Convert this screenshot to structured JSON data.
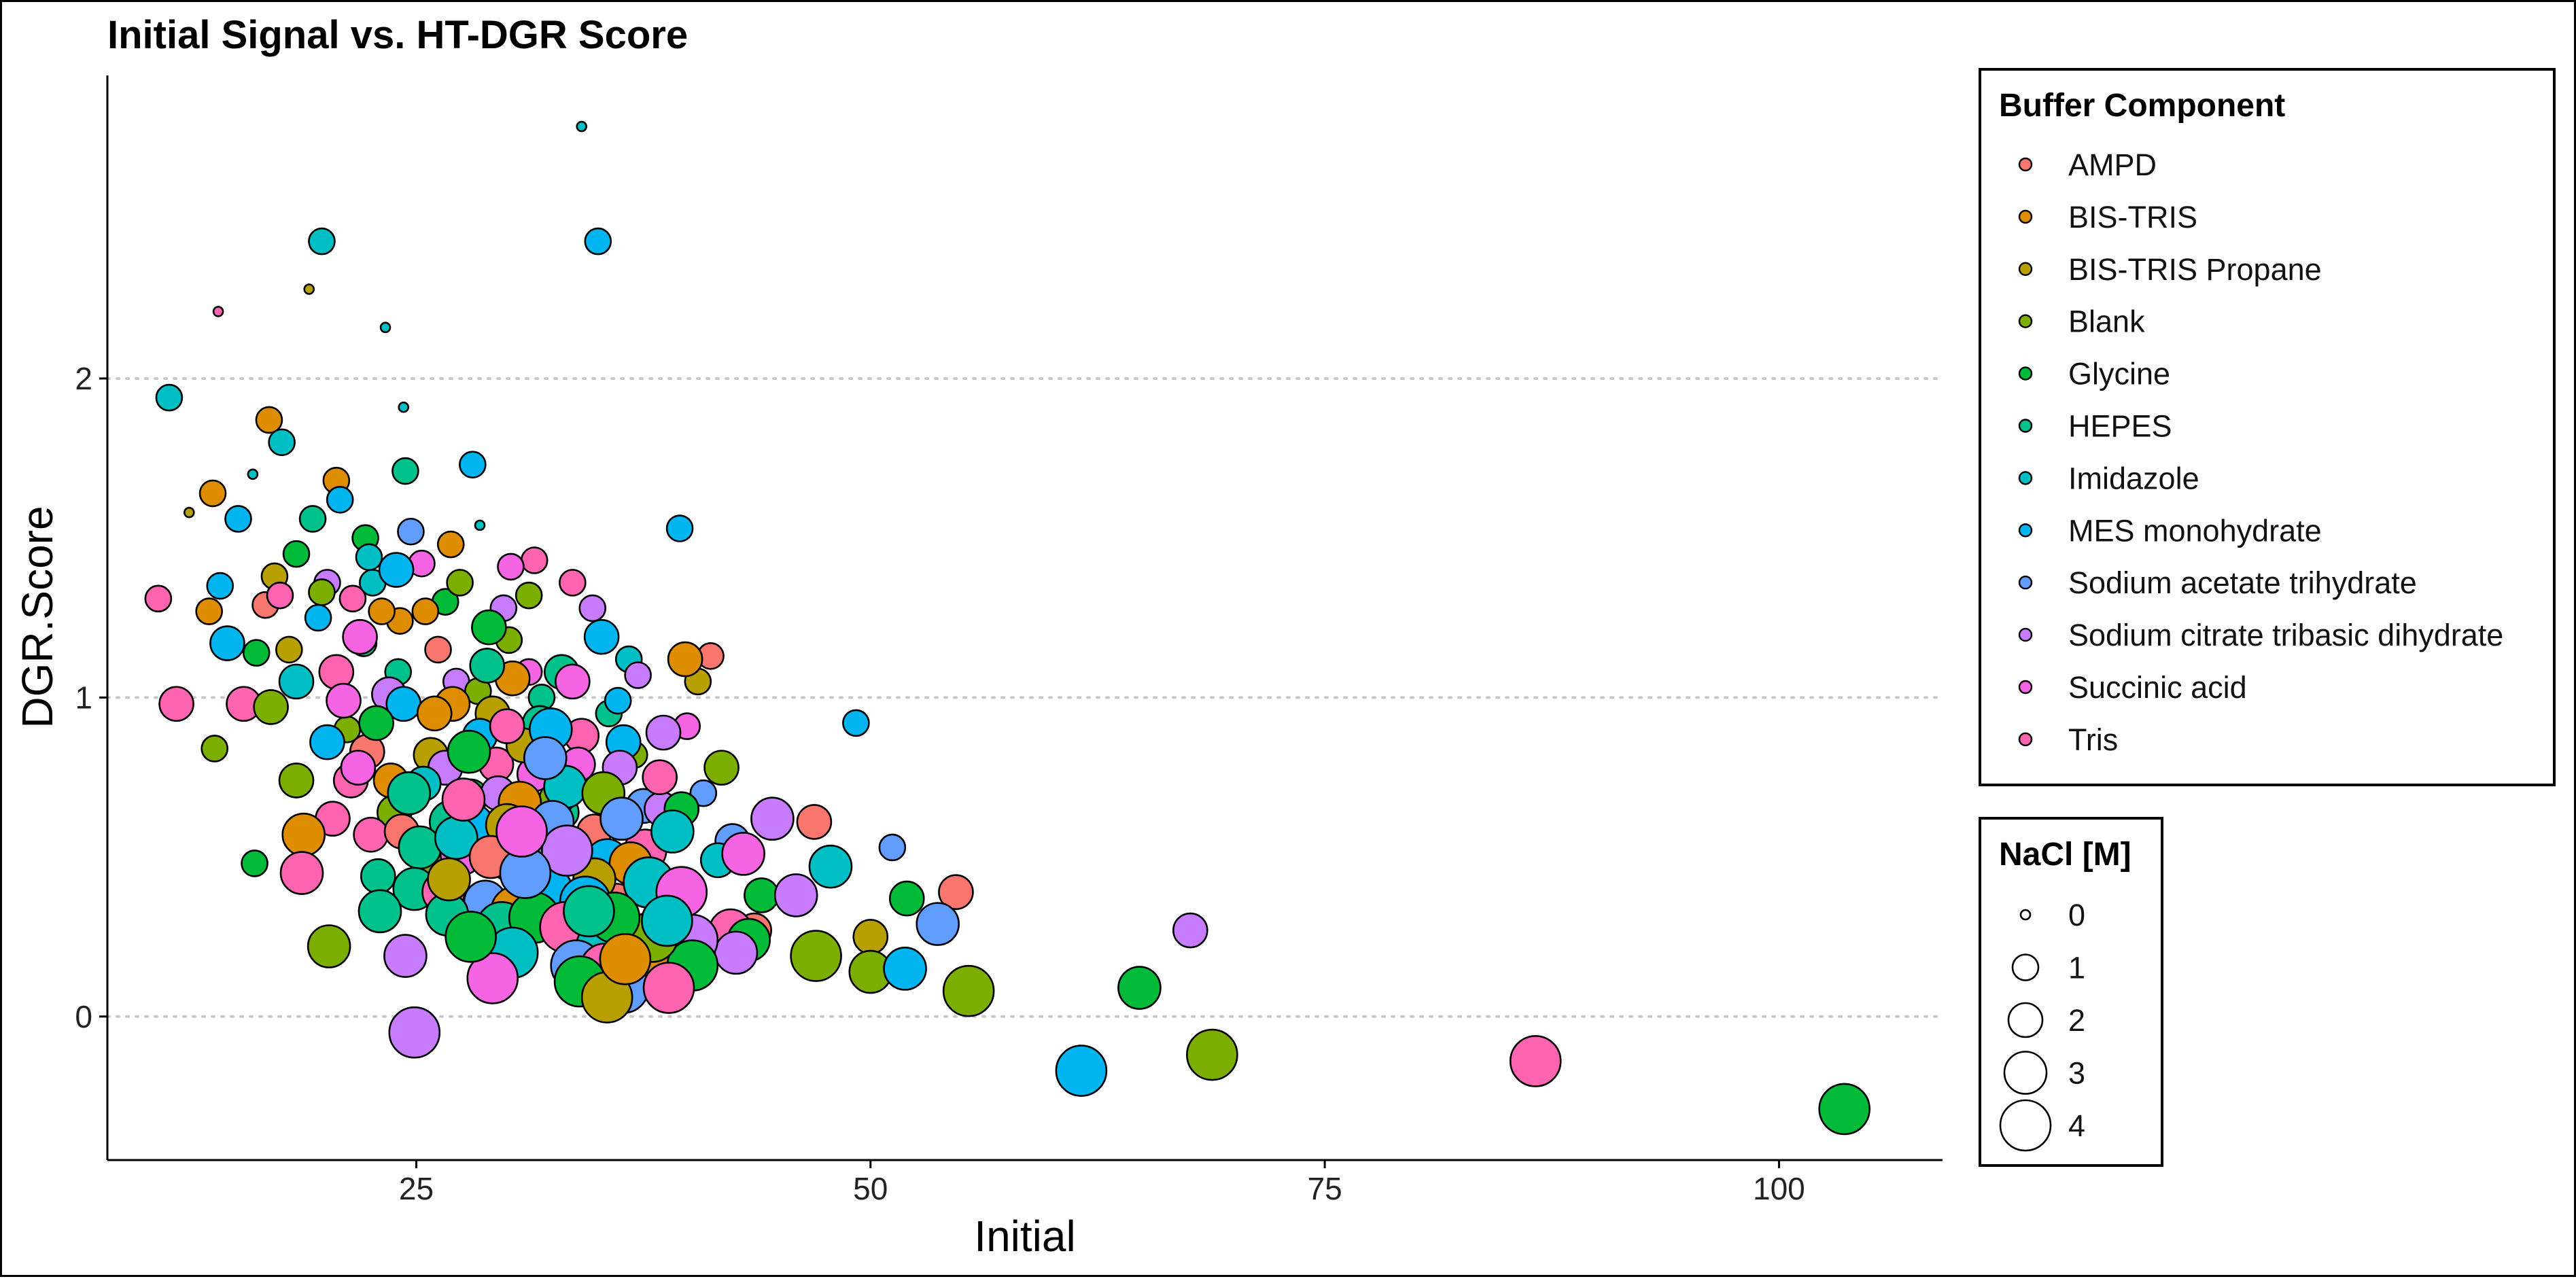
{
  "chart_data": {
    "type": "scatter",
    "title": "Initial Signal vs. HT-DGR Score",
    "xlabel": "Initial",
    "ylabel": "DGR.Score",
    "xlim": [
      8,
      109
    ],
    "ylim": [
      -0.45,
      2.95
    ],
    "xticks": [
      25,
      50,
      75,
      100
    ],
    "yticks": [
      0,
      1,
      2
    ],
    "grid": "horizontal-dotted",
    "legend_color": {
      "title": "Buffer Component",
      "placement": "right",
      "entries": [
        {
          "name": "AMPD",
          "color": "#F8766D"
        },
        {
          "name": "BIS-TRIS",
          "color": "#DE8C00"
        },
        {
          "name": "BIS-TRIS Propane",
          "color": "#B79F00"
        },
        {
          "name": "Blank",
          "color": "#7CAE00"
        },
        {
          "name": "Glycine",
          "color": "#00BA38"
        },
        {
          "name": "HEPES",
          "color": "#00C08B"
        },
        {
          "name": "Imidazole",
          "color": "#00BFC4"
        },
        {
          "name": "MES monohydrate",
          "color": "#00B4F0"
        },
        {
          "name": "Sodium acetate trihydrate",
          "color": "#619CFF"
        },
        {
          "name": "Sodium citrate tribasic dihydrate",
          "color": "#C77CFF"
        },
        {
          "name": "Succinic acid",
          "color": "#F564E3"
        },
        {
          "name": "Tris",
          "color": "#FF64B0"
        }
      ]
    },
    "legend_size": {
      "title": "NaCl [M]",
      "placement": "right",
      "entries": [
        {
          "label": "0",
          "value": 0
        },
        {
          "label": "1",
          "value": 1
        },
        {
          "label": "2",
          "value": 2
        },
        {
          "label": "3",
          "value": 3
        },
        {
          "label": "4",
          "value": 4
        }
      ]
    },
    "points": [
      [
        34.1,
        2.79,
        6,
        0
      ],
      [
        35.0,
        2.43,
        7,
        1
      ],
      [
        19.8,
        2.43,
        6,
        1
      ],
      [
        19.1,
        2.28,
        2,
        0
      ],
      [
        14.1,
        2.21,
        11,
        0
      ],
      [
        23.3,
        2.16,
        6,
        0
      ],
      [
        11.4,
        1.94,
        6,
        1
      ],
      [
        24.3,
        1.91,
        6,
        0
      ],
      [
        16.9,
        1.87,
        1,
        1
      ],
      [
        17.6,
        1.8,
        6,
        1
      ],
      [
        28.1,
        1.73,
        7,
        1
      ],
      [
        24.4,
        1.71,
        5,
        1
      ],
      [
        16.0,
        1.7,
        6,
        0
      ],
      [
        20.6,
        1.68,
        1,
        1
      ],
      [
        13.8,
        1.64,
        1,
        1
      ],
      [
        20.8,
        1.62,
        7,
        1
      ],
      [
        15.2,
        1.56,
        7,
        1
      ],
      [
        19.3,
        1.56,
        5,
        1
      ],
      [
        12.5,
        1.58,
        2,
        0
      ],
      [
        39.5,
        1.53,
        7,
        1
      ],
      [
        28.5,
        1.54,
        6,
        0
      ],
      [
        22.2,
        1.5,
        4,
        1
      ],
      [
        24.7,
        1.52,
        8,
        1
      ],
      [
        26.9,
        1.48,
        1,
        1
      ],
      [
        18.4,
        1.45,
        4,
        1
      ],
      [
        31.5,
        1.43,
        11,
        1
      ],
      [
        30.2,
        1.41,
        10,
        1
      ],
      [
        17.2,
        1.38,
        2,
        1
      ],
      [
        23.9,
        1.4,
        7,
        2
      ],
      [
        20.1,
        1.36,
        9,
        1
      ],
      [
        14.2,
        1.35,
        7,
        1
      ],
      [
        10.8,
        1.31,
        11,
        1
      ],
      [
        19.8,
        1.33,
        3,
        1
      ],
      [
        22.6,
        1.36,
        6,
        1
      ],
      [
        26.6,
        1.3,
        4,
        1
      ],
      [
        31.2,
        1.32,
        3,
        1
      ],
      [
        21.5,
        1.31,
        11,
        1
      ],
      [
        25.5,
        1.27,
        1,
        1
      ],
      [
        16.7,
        1.29,
        0,
        1
      ],
      [
        13.6,
        1.27,
        1,
        1
      ],
      [
        24.1,
        1.24,
        1,
        1
      ],
      [
        29.0,
        1.22,
        4,
        2
      ],
      [
        35.2,
        1.19,
        7,
        2
      ],
      [
        30.1,
        1.18,
        3,
        1
      ],
      [
        22.1,
        1.17,
        5,
        1
      ],
      [
        18.0,
        1.15,
        2,
        1
      ],
      [
        16.2,
        1.14,
        4,
        1
      ],
      [
        14.6,
        1.17,
        7,
        2
      ],
      [
        41.2,
        1.13,
        0,
        1
      ],
      [
        39.8,
        1.12,
        1,
        2
      ],
      [
        36.7,
        1.12,
        6,
        1
      ],
      [
        33.0,
        1.08,
        5,
        2
      ],
      [
        30.3,
        1.06,
        1,
        2
      ],
      [
        27.2,
        1.05,
        9,
        1
      ],
      [
        20.6,
        1.08,
        11,
        2
      ],
      [
        18.4,
        1.05,
        6,
        2
      ],
      [
        11.8,
        0.98,
        11,
        2
      ],
      [
        15.5,
        0.98,
        11,
        2
      ],
      [
        17.0,
        0.97,
        3,
        2
      ],
      [
        21.0,
        0.99,
        10,
        2
      ],
      [
        23.5,
        1.01,
        9,
        2
      ],
      [
        24.3,
        0.98,
        7,
        2
      ],
      [
        27.0,
        0.98,
        1,
        2
      ],
      [
        29.2,
        0.95,
        2,
        2
      ],
      [
        31.8,
        0.92,
        5,
        2
      ],
      [
        32.4,
        0.9,
        7,
        3
      ],
      [
        34.1,
        0.88,
        11,
        2
      ],
      [
        36.4,
        0.86,
        7,
        2
      ],
      [
        38.6,
        0.89,
        9,
        2
      ],
      [
        39.9,
        0.91,
        10,
        1
      ],
      [
        49.2,
        0.92,
        7,
        1
      ],
      [
        13.9,
        0.84,
        3,
        1
      ],
      [
        20.1,
        0.86,
        7,
        2
      ],
      [
        22.3,
        0.83,
        0,
        2
      ],
      [
        25.8,
        0.82,
        2,
        2
      ],
      [
        26.6,
        0.78,
        9,
        2
      ],
      [
        29.4,
        0.79,
        11,
        2
      ],
      [
        31.5,
        0.76,
        10,
        2
      ],
      [
        33.9,
        0.79,
        10,
        2
      ],
      [
        36.2,
        0.78,
        9,
        2
      ],
      [
        41.8,
        0.78,
        3,
        2
      ],
      [
        18.4,
        0.74,
        3,
        2
      ],
      [
        21.4,
        0.74,
        11,
        2
      ],
      [
        24.6,
        0.7,
        5,
        3
      ],
      [
        28.0,
        0.69,
        4,
        2
      ],
      [
        30.7,
        0.67,
        1,
        3
      ],
      [
        33.2,
        0.72,
        6,
        3
      ],
      [
        35.3,
        0.7,
        3,
        3
      ],
      [
        37.5,
        0.66,
        8,
        2
      ],
      [
        38.5,
        0.65,
        9,
        2
      ],
      [
        39.6,
        0.65,
        4,
        2
      ],
      [
        20.4,
        0.62,
        11,
        2
      ],
      [
        23.8,
        0.64,
        3,
        2
      ],
      [
        26.9,
        0.61,
        5,
        3
      ],
      [
        28.1,
        0.6,
        7,
        3
      ],
      [
        30.0,
        0.6,
        2,
        3
      ],
      [
        32.5,
        0.61,
        8,
        3
      ],
      [
        34.8,
        0.58,
        0,
        2
      ],
      [
        44.6,
        0.62,
        9,
        3
      ],
      [
        46.9,
        0.61,
        0,
        2
      ],
      [
        51.2,
        0.53,
        8,
        1
      ],
      [
        18.8,
        0.57,
        1,
        3
      ],
      [
        22.5,
        0.57,
        11,
        2
      ],
      [
        25.2,
        0.53,
        5,
        3
      ],
      [
        27.5,
        0.51,
        10,
        3
      ],
      [
        30.2,
        0.49,
        3,
        3
      ],
      [
        32.0,
        0.5,
        8,
        3
      ],
      [
        33.3,
        0.52,
        9,
        4
      ],
      [
        35.5,
        0.49,
        7,
        3
      ],
      [
        37.6,
        0.52,
        11,
        3
      ],
      [
        42.4,
        0.55,
        8,
        2
      ],
      [
        43.0,
        0.51,
        10,
        3
      ],
      [
        47.8,
        0.47,
        6,
        3
      ],
      [
        16.1,
        0.48,
        4,
        1
      ],
      [
        18.7,
        0.45,
        11,
        3
      ],
      [
        22.9,
        0.44,
        5,
        2
      ],
      [
        24.9,
        0.4,
        5,
        3
      ],
      [
        26.5,
        0.39,
        11,
        3
      ],
      [
        28.8,
        0.36,
        8,
        3
      ],
      [
        30.5,
        0.33,
        1,
        4
      ],
      [
        32.8,
        0.35,
        11,
        3
      ],
      [
        34.3,
        0.36,
        7,
        4
      ],
      [
        36.0,
        0.35,
        0,
        3
      ],
      [
        37.8,
        0.42,
        6,
        4
      ],
      [
        39.6,
        0.39,
        10,
        4
      ],
      [
        44.0,
        0.38,
        4,
        2
      ],
      [
        45.9,
        0.38,
        9,
        3
      ],
      [
        52.0,
        0.37,
        4,
        2
      ],
      [
        54.7,
        0.39,
        0,
        2
      ],
      [
        23.0,
        0.33,
        5,
        3
      ],
      [
        26.7,
        0.32,
        5,
        3
      ],
      [
        29.7,
        0.28,
        5,
        4
      ],
      [
        31.5,
        0.31,
        4,
        4
      ],
      [
        33.2,
        0.28,
        11,
        4
      ],
      [
        35.2,
        0.22,
        6,
        4
      ],
      [
        37.5,
        0.24,
        7,
        4
      ],
      [
        40.2,
        0.24,
        9,
        4
      ],
      [
        42.3,
        0.27,
        11,
        3
      ],
      [
        43.3,
        0.24,
        4,
        3
      ],
      [
        50.0,
        0.25,
        2,
        2
      ],
      [
        53.7,
        0.29,
        8,
        3
      ],
      [
        67.6,
        0.27,
        9,
        2
      ],
      [
        20.2,
        0.22,
        3,
        3
      ],
      [
        24.4,
        0.19,
        9,
        3
      ],
      [
        30.3,
        0.2,
        6,
        4
      ],
      [
        33.8,
        0.16,
        8,
        4
      ],
      [
        35.4,
        0.15,
        11,
        4
      ],
      [
        37.6,
        0.2,
        1,
        4
      ],
      [
        40.2,
        0.16,
        4,
        4
      ],
      [
        47.0,
        0.19,
        3,
        4
      ],
      [
        50.0,
        0.14,
        3,
        3
      ],
      [
        51.9,
        0.15,
        7,
        3
      ],
      [
        29.2,
        0.12,
        10,
        4
      ],
      [
        34.0,
        0.11,
        4,
        4
      ],
      [
        36.4,
        0.09,
        8,
        4
      ],
      [
        38.9,
        0.09,
        11,
        4
      ],
      [
        35.5,
        0.06,
        2,
        4
      ],
      [
        55.4,
        0.08,
        3,
        4
      ],
      [
        64.8,
        0.09,
        4,
        3
      ],
      [
        24.9,
        -0.05,
        9,
        4
      ],
      [
        61.6,
        -0.17,
        7,
        4
      ],
      [
        68.8,
        -0.12,
        3,
        4
      ],
      [
        86.6,
        -0.14,
        11,
        4
      ],
      [
        103.6,
        -0.29,
        4,
        4
      ],
      [
        21.8,
        0.78,
        10,
        2
      ],
      [
        27.9,
        0.83,
        4,
        3
      ],
      [
        31.0,
        0.45,
        8,
        4
      ],
      [
        29.5,
        0.7,
        9,
        2
      ],
      [
        26.0,
        0.95,
        1,
        2
      ],
      [
        38.0,
        0.25,
        3,
        4
      ],
      [
        35.9,
        0.31,
        4,
        4
      ],
      [
        33.0,
        0.64,
        5,
        2
      ],
      [
        27.2,
        0.56,
        6,
        3
      ],
      [
        28.5,
        0.88,
        7,
        2
      ],
      [
        32.1,
        0.81,
        8,
        3
      ],
      [
        30.8,
        0.58,
        10,
        4
      ],
      [
        36.8,
        0.48,
        1,
        3
      ],
      [
        34.8,
        0.43,
        2,
        3
      ],
      [
        22.8,
        0.92,
        4,
        2
      ],
      [
        25.4,
        0.73,
        6,
        2
      ],
      [
        19.6,
        1.25,
        7,
        1
      ],
      [
        23.1,
        1.27,
        1,
        1
      ],
      [
        21.9,
        1.19,
        10,
        2
      ],
      [
        29.8,
        1.28,
        9,
        1
      ],
      [
        17.5,
        1.32,
        11,
        1
      ],
      [
        24.0,
        1.08,
        5,
        1
      ],
      [
        26.2,
        1.15,
        0,
        1
      ],
      [
        28.4,
        1.02,
        3,
        1
      ],
      [
        31.9,
        1.0,
        5,
        1
      ],
      [
        33.6,
        1.05,
        10,
        2
      ],
      [
        37.2,
        1.07,
        9,
        1
      ],
      [
        40.5,
        1.05,
        2,
        1
      ],
      [
        38.4,
        0.75,
        11,
        2
      ],
      [
        41.6,
        0.49,
        6,
        2
      ],
      [
        43.6,
        0.27,
        0,
        2
      ],
      [
        36.3,
        0.62,
        8,
        3
      ],
      [
        39.1,
        0.58,
        6,
        3
      ],
      [
        32.4,
        0.4,
        7,
        3
      ],
      [
        28.0,
        0.25,
        4,
        4
      ],
      [
        25.7,
        0.48,
        3,
        2
      ],
      [
        27.6,
        0.68,
        11,
        3
      ],
      [
        30.9,
        0.85,
        2,
        2
      ],
      [
        29.1,
        0.5,
        0,
        3
      ],
      [
        34.5,
        0.33,
        5,
        4
      ],
      [
        38.8,
        0.3,
        6,
        4
      ],
      [
        36.5,
        0.18,
        1,
        4
      ],
      [
        42.6,
        0.2,
        9,
        3
      ],
      [
        24.2,
        0.58,
        0,
        2
      ],
      [
        26.8,
        0.43,
        2,
        3
      ],
      [
        30.0,
        0.91,
        11,
        2
      ],
      [
        32.7,
        0.68,
        3,
        2
      ],
      [
        23.6,
        0.74,
        1,
        2
      ],
      [
        21.2,
        0.9,
        3,
        1
      ],
      [
        28.9,
        1.1,
        5,
        2
      ],
      [
        31.2,
        1.08,
        10,
        1
      ],
      [
        35.6,
        0.95,
        5,
        1
      ],
      [
        37.0,
        0.82,
        3,
        1
      ],
      [
        40.8,
        0.7,
        8,
        1
      ],
      [
        33.6,
        1.36,
        11,
        1
      ],
      [
        34.7,
        1.28,
        9,
        1
      ],
      [
        36.1,
        0.99,
        7,
        1
      ],
      [
        27.4,
        1.36,
        3,
        1
      ],
      [
        25.3,
        1.42,
        10,
        1
      ],
      [
        22.4,
        1.44,
        6,
        1
      ]
    ]
  }
}
